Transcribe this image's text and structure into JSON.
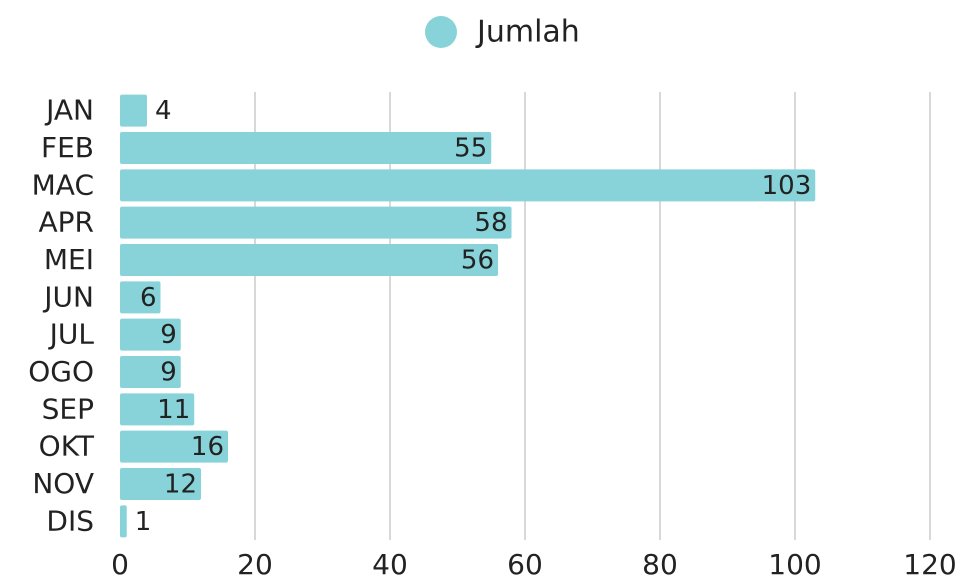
{
  "chart_data": {
    "type": "bar",
    "orientation": "horizontal",
    "legend": "top",
    "categories": [
      "JAN",
      "FEB",
      "MAC",
      "APR",
      "MEI",
      "JUN",
      "JUL",
      "OGO",
      "SEP",
      "OKT",
      "NOV",
      "DIS"
    ],
    "series": [
      {
        "name": "Jumlah",
        "color": "#88d3d9",
        "values": [
          4,
          55,
          103,
          58,
          56,
          6,
          9,
          9,
          11,
          16,
          12,
          1
        ]
      }
    ],
    "xlim": [
      0,
      120
    ],
    "xticks": [
      0,
      20,
      40,
      60,
      80,
      100,
      120
    ],
    "grid": true
  }
}
